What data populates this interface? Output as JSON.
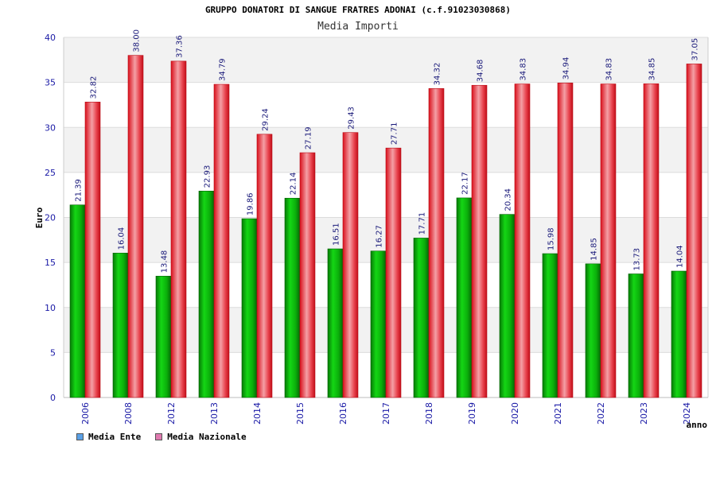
{
  "chart_data": {
    "type": "bar",
    "title": "GRUPPO DONATORI DI SANGUE FRATRES ADONAI (c.f.91023030868)",
    "subtitle": "Media Importi",
    "xlabel": "anno",
    "ylabel": "Euro",
    "ylim": [
      0,
      40
    ],
    "yticks": [
      0,
      5,
      10,
      15,
      20,
      25,
      30,
      35,
      40
    ],
    "grid": true,
    "legend_position": "bottom-left",
    "categories": [
      "2006",
      "2008",
      "2012",
      "2013",
      "2014",
      "2015",
      "2016",
      "2017",
      "2018",
      "2019",
      "2020",
      "2021",
      "2022",
      "2023",
      "2024"
    ],
    "series": [
      {
        "name": "Media Ente",
        "color": "#0bb10b",
        "legend_color": "#5aa0e6",
        "values": [
          21.39,
          16.04,
          13.48,
          22.93,
          19.86,
          22.14,
          16.51,
          16.27,
          17.71,
          22.17,
          20.34,
          15.98,
          14.85,
          13.73,
          14.04
        ],
        "labels": [
          "21.39",
          "16.04",
          "13.48",
          "22.93",
          "19.86",
          "22.14",
          "16.51",
          "16.27",
          "17.71",
          "22.17",
          "20.34",
          "15.98",
          "14.85",
          "13.73",
          "14.04"
        ]
      },
      {
        "name": "Media Nazionale",
        "color": "#e01e2a",
        "legend_color": "#e07ab0",
        "values": [
          32.82,
          38.0,
          37.36,
          34.79,
          29.24,
          27.19,
          29.43,
          27.71,
          34.32,
          34.68,
          34.83,
          34.94,
          34.83,
          34.85,
          37.05
        ],
        "labels": [
          "32.82",
          "38.00",
          "37.36",
          "34.79",
          "29.24",
          "27.19",
          "29.43",
          "27.71",
          "34.32",
          "34.68",
          "34.83",
          "34.94",
          "34.83",
          "34.85",
          "37.05"
        ]
      }
    ]
  }
}
